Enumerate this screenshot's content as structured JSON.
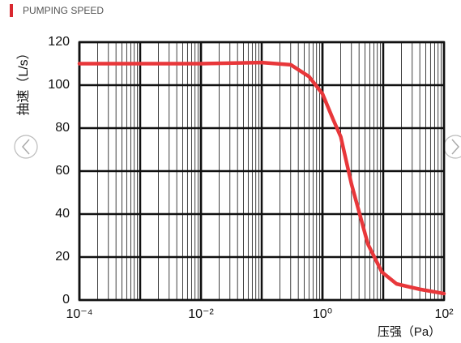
{
  "header": {
    "title": "PUMPING SPEED"
  },
  "chart_data": {
    "type": "line",
    "ylabel": "抽速（L/s）",
    "xlabel": "压强（Pa）",
    "log_x": true,
    "grid": true,
    "xlim": [
      0.0001,
      100
    ],
    "ylim": [
      0,
      120
    ],
    "xticks": [
      {
        "value": 0.0001,
        "label": "10⁻⁴"
      },
      {
        "value": 0.01,
        "label": "10⁻²"
      },
      {
        "value": 1,
        "label": "10⁰"
      },
      {
        "value": 100,
        "label": "10²"
      }
    ],
    "yticks": [
      0,
      20,
      40,
      60,
      80,
      100,
      120
    ],
    "x": [
      0.0001,
      0.001,
      0.01,
      0.1,
      0.3,
      0.6,
      1,
      1.5,
      2,
      3,
      5.6,
      9.5,
      16.6,
      40,
      100
    ],
    "series": [
      {
        "name": "pumping-speed",
        "color": "#e8373a",
        "values": [
          110,
          110,
          110,
          110.5,
          109.5,
          104,
          96,
          84,
          76,
          54,
          26,
          13,
          7.5,
          5,
          3
        ]
      }
    ]
  }
}
